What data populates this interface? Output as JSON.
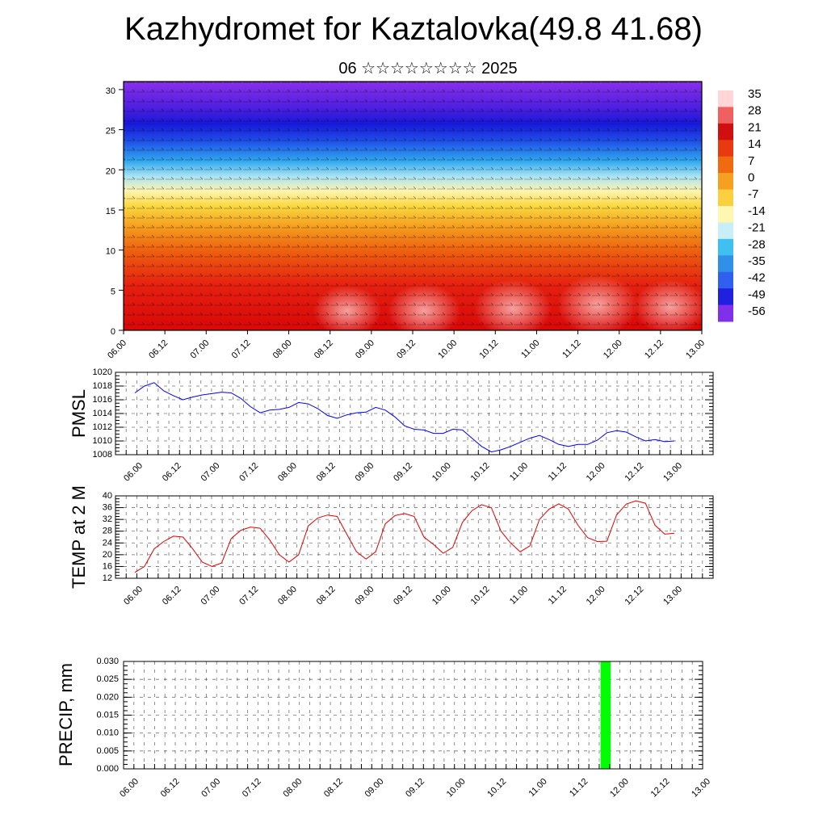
{
  "title": "Kazhydromet for Kaztalovka(49.8 41.68)",
  "subtitle": "06 ☆☆☆☆☆☆☆☆ 2025",
  "time_labels": [
    "06.00",
    "06.12",
    "07.00",
    "07.12",
    "08.00",
    "08.12",
    "09.00",
    "09.12",
    "10.00",
    "10.12",
    "11.00",
    "11.12",
    "12.00",
    "12.12",
    "13.00"
  ],
  "chart_data": [
    {
      "type": "heatmap",
      "name": "cross-section",
      "yticks": [
        0,
        5,
        10,
        15,
        20,
        25,
        30
      ],
      "ylim": [
        0,
        31
      ],
      "colorbar": {
        "labels": [
          "35",
          "28",
          "21",
          "14",
          "7",
          "0",
          "-7",
          "-14",
          "-21",
          "-28",
          "-35",
          "-42",
          "-49",
          "-56"
        ],
        "colors": [
          "#ffd5d5",
          "#f06060",
          "#d01010",
          "#e83a10",
          "#f06a10",
          "#f5a020",
          "#fad040",
          "#fff7b0",
          "#c8eef8",
          "#40c0f0",
          "#3090e8",
          "#3060f0",
          "#2020e0",
          "#8030e8"
        ]
      }
    },
    {
      "type": "line",
      "ylabel": "PMSL",
      "ylim": [
        1008,
        1020
      ],
      "yticks": [
        1008,
        1010,
        1012,
        1014,
        1016,
        1018,
        1020
      ],
      "color": "#0000ff",
      "x": [
        0,
        1,
        2,
        3,
        4,
        5,
        6,
        7,
        8,
        9,
        10,
        11,
        12,
        13,
        14,
        15,
        16,
        17,
        18,
        19,
        20,
        21,
        22,
        23,
        24,
        25,
        26,
        27,
        28,
        29,
        30,
        31,
        32,
        33,
        34,
        35,
        36,
        37,
        38,
        39,
        40,
        41,
        42,
        43,
        44,
        45,
        46,
        47,
        48,
        49,
        50,
        51,
        52,
        53,
        54,
        55,
        56
      ],
      "values": [
        1017.0,
        1018.0,
        1018.5,
        1017.3,
        1016.6,
        1016.0,
        1016.4,
        1016.7,
        1016.9,
        1017.1,
        1017.0,
        1016.2,
        1015.0,
        1014.1,
        1014.5,
        1014.6,
        1014.9,
        1015.6,
        1015.4,
        1014.7,
        1013.7,
        1013.3,
        1013.8,
        1014.1,
        1014.2,
        1014.9,
        1014.5,
        1013.5,
        1012.2,
        1011.7,
        1011.6,
        1011.1,
        1011.1,
        1011.7,
        1011.6,
        1010.4,
        1009.2,
        1008.4,
        1008.7,
        1009.2,
        1009.8,
        1010.4,
        1010.8,
        1010.2,
        1009.5,
        1009.2,
        1009.5,
        1009.5,
        1010.1,
        1011.2,
        1011.5,
        1011.3,
        1010.6,
        1010.0,
        1010.2,
        1009.9,
        1010.0
      ]
    },
    {
      "type": "line",
      "ylabel": "TEMP at 2 M",
      "ylim": [
        12,
        40
      ],
      "yticks": [
        12,
        16,
        20,
        24,
        28,
        32,
        36,
        40
      ],
      "color": "#e00000",
      "x": [
        0,
        1,
        2,
        3,
        4,
        5,
        6,
        7,
        8,
        9,
        10,
        11,
        12,
        13,
        14,
        15,
        16,
        17,
        18,
        19,
        20,
        21,
        22,
        23,
        24,
        25,
        26,
        27,
        28,
        29,
        30,
        31,
        32,
        33,
        34,
        35,
        36,
        37,
        38,
        39,
        40,
        41,
        42,
        43,
        44,
        45,
        46,
        47,
        48,
        49,
        50,
        51,
        52,
        53,
        54,
        55,
        56
      ],
      "values": [
        14.0,
        16.0,
        22.0,
        24.5,
        26.3,
        26.0,
        22.0,
        17.5,
        16.0,
        17.2,
        25.5,
        28.3,
        29.4,
        29.0,
        25.0,
        20.0,
        17.5,
        20.0,
        29.8,
        32.5,
        33.5,
        33.0,
        27.0,
        21.0,
        18.5,
        21.0,
        30.5,
        33.3,
        34.0,
        33.0,
        26.0,
        23.5,
        20.5,
        22.5,
        31.0,
        35.0,
        37.0,
        36.0,
        28.0,
        24.0,
        21.0,
        23.0,
        32.0,
        35.5,
        37.3,
        35.5,
        30.0,
        25.8,
        24.5,
        24.6,
        33.5,
        37.2,
        38.3,
        37.5,
        30.0,
        27.0,
        27.3
      ]
    },
    {
      "type": "bar",
      "ylabel": "PRECIP, mm",
      "ylim": [
        0,
        0.03
      ],
      "yticks": [
        "0.000",
        "0.005",
        "0.010",
        "0.015",
        "0.020",
        "0.025",
        "0.030"
      ],
      "color": "#00ff00",
      "x": [
        46.5
      ],
      "values": [
        0.03
      ]
    }
  ]
}
